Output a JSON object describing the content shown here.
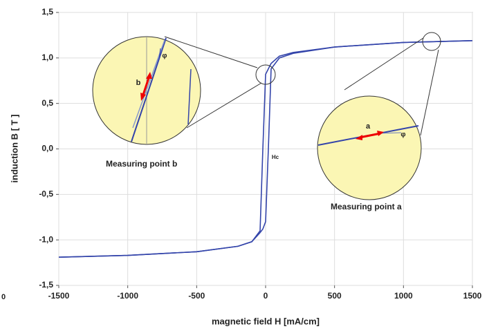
{
  "chart_data": {
    "type": "line",
    "x_label": "magnetic field H [mA/cm]",
    "y_label": "induction B [ T ]",
    "x": [
      -1500,
      -1000,
      -500,
      -200,
      -100,
      -40,
      -20,
      0,
      20,
      40,
      100,
      200,
      500,
      1000,
      1500
    ],
    "series": [
      {
        "color": "#3344aa",
        "values": [
          -1.19,
          -1.17,
          -1.13,
          -1.07,
          -1.02,
          -0.92,
          -0.88,
          -0.8,
          0,
          0.88,
          1.0,
          1.05,
          1.12,
          1.17,
          1.19
        ]
      },
      {
        "color": "#3344aa",
        "values": [
          -1.19,
          -1.17,
          -1.13,
          -1.07,
          -1.02,
          -0.9,
          0,
          0.82,
          0.88,
          0.94,
          1.02,
          1.06,
          1.12,
          1.17,
          1.19
        ]
      }
    ],
    "xlim": [
      -1500,
      1500
    ],
    "xticks": [
      -1500,
      -1000,
      -500,
      0,
      500,
      1000,
      1500
    ],
    "ylim": [
      -1.5,
      1.5
    ],
    "yticks": [
      {
        "value": -1.5,
        "label": "-1,5"
      },
      {
        "value": -1.0,
        "label": "-1,0"
      },
      {
        "value": -0.5,
        "label": "-0,5"
      },
      {
        "value": 0,
        "label": "0,0"
      },
      {
        "value": 0.5,
        "label": "0,5"
      },
      {
        "value": 1.0,
        "label": "1,0"
      },
      {
        "value": 1.5,
        "label": "1,5"
      }
    ],
    "grid": true,
    "annotations": [
      "Measuring point b",
      "Measuring point a",
      "b",
      "a",
      "φ",
      "φ",
      "Hc",
      "0"
    ]
  }
}
